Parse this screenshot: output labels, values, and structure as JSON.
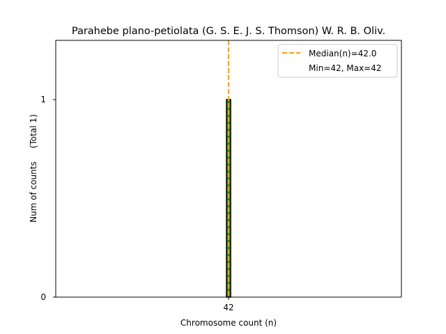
{
  "chart_data": {
    "type": "bar",
    "title": "Parahebe plano-petiolata (G. S. E. J. S. Thomson) W. R. B. Oliv.",
    "xlabel": "Chromosome count (n)",
    "ylabel": "Num of counts     (Total 1)",
    "categories": [
      "42"
    ],
    "values": [
      1
    ],
    "x": [
      42
    ],
    "xlim": [
      37,
      47
    ],
    "ylim": [
      0,
      1.3
    ],
    "yticks": [
      0,
      1
    ],
    "yticks_left_extra": [
      0,
      1
    ],
    "median": 42.0,
    "min": 42,
    "max": 42,
    "legend": {
      "position": "top-right",
      "entries": [
        "Median(n)=42.0",
        "Min=42, Max=42"
      ]
    },
    "colors": {
      "bar_fill": "#2e7d32",
      "bar_edge": "#000000",
      "bar_hatch": "#228b22",
      "median_line": "#ffa500"
    },
    "grid": false
  }
}
